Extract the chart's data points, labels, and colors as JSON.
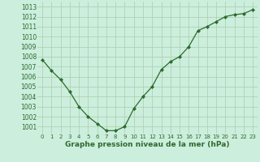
{
  "x": [
    0,
    1,
    2,
    3,
    4,
    5,
    6,
    7,
    8,
    9,
    10,
    11,
    12,
    13,
    14,
    15,
    16,
    17,
    18,
    19,
    20,
    21,
    22,
    23
  ],
  "y": [
    1007.7,
    1006.6,
    1005.7,
    1004.5,
    1003.0,
    1002.0,
    1001.3,
    1000.6,
    1000.6,
    1001.0,
    1002.8,
    1004.0,
    1005.0,
    1006.7,
    1007.5,
    1008.0,
    1009.0,
    1010.6,
    1011.0,
    1011.5,
    1012.0,
    1012.2,
    1012.3,
    1012.7
  ],
  "line_color": "#2d6a2d",
  "marker": "D",
  "marker_size": 2.0,
  "bg_color": "#cceedd",
  "grid_color": "#aaccaa",
  "xlabel": "Graphe pression niveau de la mer (hPa)",
  "xlabel_color": "#2d6a2d",
  "tick_color": "#2d6a2d",
  "ylim": [
    1000.3,
    1013.5
  ],
  "xlim": [
    -0.5,
    23.5
  ],
  "yticks": [
    1001,
    1002,
    1003,
    1004,
    1005,
    1006,
    1007,
    1008,
    1009,
    1010,
    1011,
    1012,
    1013
  ],
  "xticks": [
    0,
    1,
    2,
    3,
    4,
    5,
    6,
    7,
    8,
    9,
    10,
    11,
    12,
    13,
    14,
    15,
    16,
    17,
    18,
    19,
    20,
    21,
    22,
    23
  ]
}
